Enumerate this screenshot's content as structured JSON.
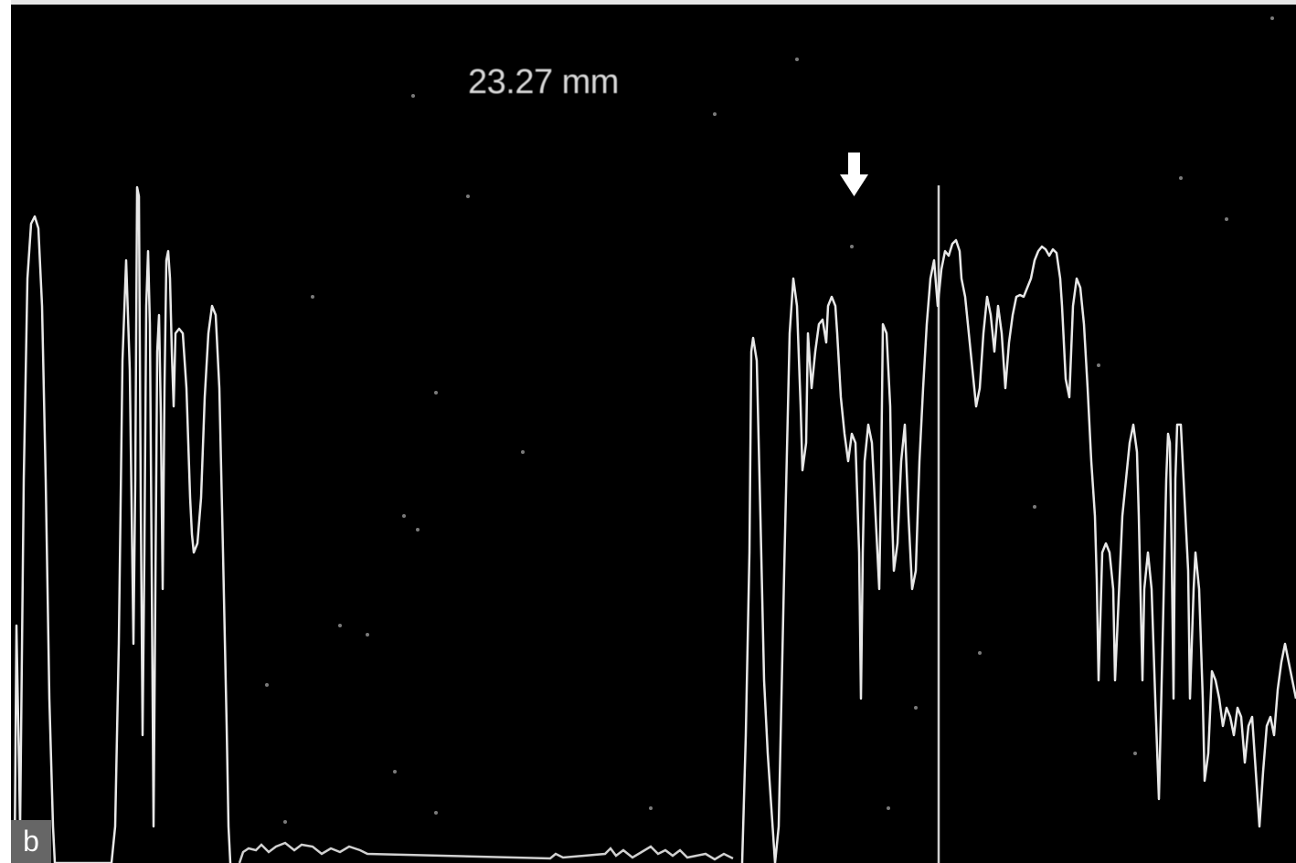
{
  "measurement": {
    "label": "23.27 mm"
  },
  "panel": {
    "letter": "b"
  },
  "colors": {
    "background": "#000000",
    "trace": "#e8e8e8",
    "label": "#d9d9d9"
  },
  "icons": {
    "marker": "down-arrow-icon"
  }
}
